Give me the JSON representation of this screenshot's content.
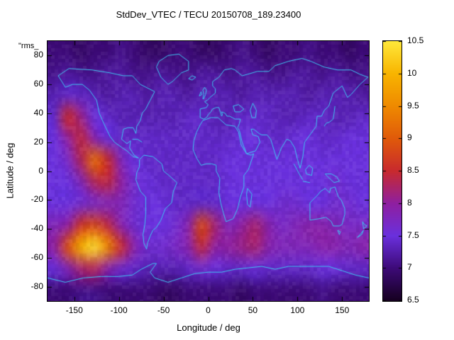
{
  "corner_label": "\"rms_",
  "chart_data": {
    "type": "heatmap",
    "title": "StdDev_VTEC / TECU 20150708_189.23400",
    "xlabel": "Longitude / deg",
    "ylabel": "Latitude / deg",
    "xlim": [
      -180,
      180
    ],
    "ylim": [
      -90,
      90
    ],
    "grid_on": false,
    "x_ticks": [
      {
        "v": -150,
        "label": "-150"
      },
      {
        "v": -100,
        "label": "-100"
      },
      {
        "v": -50,
        "label": "-50"
      },
      {
        "v": 0,
        "label": "0"
      },
      {
        "v": 50,
        "label": "50"
      },
      {
        "v": 100,
        "label": "100"
      },
      {
        "v": 150,
        "label": "150"
      }
    ],
    "y_ticks": [
      {
        "v": 80,
        "label": "80"
      },
      {
        "v": 60,
        "label": "60"
      },
      {
        "v": 40,
        "label": "40"
      },
      {
        "v": 20,
        "label": "20"
      },
      {
        "v": 0,
        "label": "0"
      },
      {
        "v": -20,
        "label": "-20"
      },
      {
        "v": -40,
        "label": "-40"
      },
      {
        "v": -60,
        "label": "-60"
      },
      {
        "v": -80,
        "label": "-80"
      }
    ],
    "colorbar": {
      "min": 6.5,
      "max": 10.5,
      "ticks": [
        {
          "v": 10.5,
          "label": "10.5"
        },
        {
          "v": 10,
          "label": "10"
        },
        {
          "v": 9.5,
          "label": "9.5"
        },
        {
          "v": 9,
          "label": "9"
        },
        {
          "v": 8.5,
          "label": "8.5"
        },
        {
          "v": 8,
          "label": "8"
        },
        {
          "v": 7.5,
          "label": "7.5"
        },
        {
          "v": 7,
          "label": "7"
        },
        {
          "v": 6.5,
          "label": "6.5"
        }
      ],
      "palette": [
        {
          "value": 6.5,
          "color": "#160020"
        },
        {
          "value": 7.0,
          "color": "#3d0a78"
        },
        {
          "value": 7.5,
          "color": "#6a30dd"
        },
        {
          "value": 8.0,
          "color": "#8f1fa0"
        },
        {
          "value": 8.5,
          "color": "#c82a2e"
        },
        {
          "value": 9.0,
          "color": "#e05a0a"
        },
        {
          "value": 9.5,
          "color": "#ef8a00"
        },
        {
          "value": 10.0,
          "color": "#f8b400"
        },
        {
          "value": 10.5,
          "color": "#ffe83a"
        }
      ]
    },
    "coastline_color": "#3fc6f2",
    "grid": {
      "lon_min": -180,
      "lon_max": 180,
      "lat_min": -90,
      "lat_max": 90,
      "cols": 24,
      "rows": 12,
      "note": "rows ordered north (lat 82.5) to south (lat -82.5), 15-degree cells; values are StdDev VTEC in TECU",
      "values": [
        [
          7.0,
          7.0,
          6.9,
          7.0,
          7.0,
          7.1,
          7.0,
          6.9,
          6.9,
          7.0,
          7.0,
          6.9,
          6.9,
          7.0,
          7.1,
          7.0,
          6.9,
          7.0,
          7.0,
          7.1,
          7.0,
          7.0,
          6.9,
          7.0
        ],
        [
          7.1,
          7.2,
          7.1,
          7.1,
          7.2,
          7.2,
          7.1,
          7.1,
          7.2,
          7.1,
          7.1,
          7.2,
          7.2,
          7.1,
          7.2,
          7.2,
          7.1,
          7.1,
          7.2,
          7.2,
          7.1,
          7.2,
          7.1,
          7.1
        ],
        [
          7.3,
          7.4,
          7.4,
          7.3,
          7.2,
          7.3,
          7.3,
          7.2,
          7.3,
          7.3,
          7.2,
          7.3,
          7.3,
          7.3,
          7.2,
          7.3,
          7.3,
          7.3,
          7.3,
          7.2,
          7.3,
          7.3,
          7.3,
          7.2
        ],
        [
          7.4,
          8.5,
          8.1,
          7.5,
          7.4,
          7.3,
          7.3,
          7.3,
          7.3,
          7.3,
          7.4,
          7.4,
          7.3,
          7.3,
          7.4,
          7.4,
          7.4,
          7.3,
          7.3,
          7.4,
          7.4,
          7.3,
          7.3,
          7.4
        ],
        [
          7.5,
          8.0,
          8.4,
          7.9,
          7.5,
          7.4,
          7.4,
          7.4,
          7.4,
          7.4,
          7.4,
          7.4,
          7.4,
          7.4,
          7.5,
          7.5,
          7.4,
          7.4,
          7.5,
          7.5,
          7.4,
          7.4,
          7.5,
          7.5
        ],
        [
          7.5,
          7.7,
          8.3,
          9.2,
          8.5,
          7.8,
          7.5,
          7.4,
          7.4,
          7.4,
          7.4,
          7.4,
          7.4,
          7.5,
          7.5,
          7.5,
          7.5,
          7.5,
          7.5,
          7.5,
          7.5,
          7.5,
          7.5,
          7.5
        ],
        [
          7.5,
          7.5,
          7.8,
          8.3,
          8.4,
          8.0,
          7.6,
          7.5,
          7.4,
          7.4,
          7.4,
          7.4,
          7.4,
          7.5,
          7.5,
          7.5,
          7.5,
          7.5,
          7.5,
          7.5,
          7.5,
          7.6,
          7.5,
          7.5
        ],
        [
          7.5,
          7.5,
          7.6,
          7.7,
          7.8,
          7.8,
          7.6,
          7.5,
          7.5,
          7.4,
          7.4,
          7.4,
          7.4,
          7.5,
          7.5,
          7.5,
          7.5,
          7.6,
          7.6,
          7.5,
          7.5,
          7.6,
          7.6,
          7.5
        ],
        [
          7.8,
          8.0,
          8.6,
          8.8,
          8.4,
          7.9,
          7.6,
          7.5,
          7.5,
          7.6,
          7.9,
          8.8,
          8.2,
          7.8,
          8.0,
          8.2,
          7.9,
          7.7,
          7.8,
          7.9,
          7.9,
          7.8,
          7.7,
          7.7
        ],
        [
          8.0,
          8.9,
          10.0,
          10.4,
          9.5,
          8.5,
          7.9,
          7.6,
          7.6,
          7.7,
          7.9,
          8.4,
          8.0,
          8.0,
          8.1,
          8.2,
          7.9,
          7.8,
          7.8,
          7.8,
          7.9,
          7.9,
          7.8,
          7.9
        ],
        [
          7.5,
          7.8,
          8.2,
          8.3,
          7.9,
          7.6,
          7.4,
          7.3,
          7.3,
          7.3,
          7.4,
          7.6,
          7.5,
          7.4,
          7.4,
          7.5,
          7.4,
          7.4,
          7.4,
          7.4,
          7.5,
          7.5,
          7.4,
          7.4
        ],
        [
          7.0,
          7.0,
          7.1,
          7.1,
          7.0,
          7.0,
          7.0,
          7.0,
          6.9,
          6.9,
          7.0,
          7.0,
          7.0,
          7.0,
          6.9,
          7.0,
          7.0,
          7.0,
          7.0,
          7.0,
          7.1,
          7.0,
          7.0,
          7.0
        ]
      ]
    }
  }
}
